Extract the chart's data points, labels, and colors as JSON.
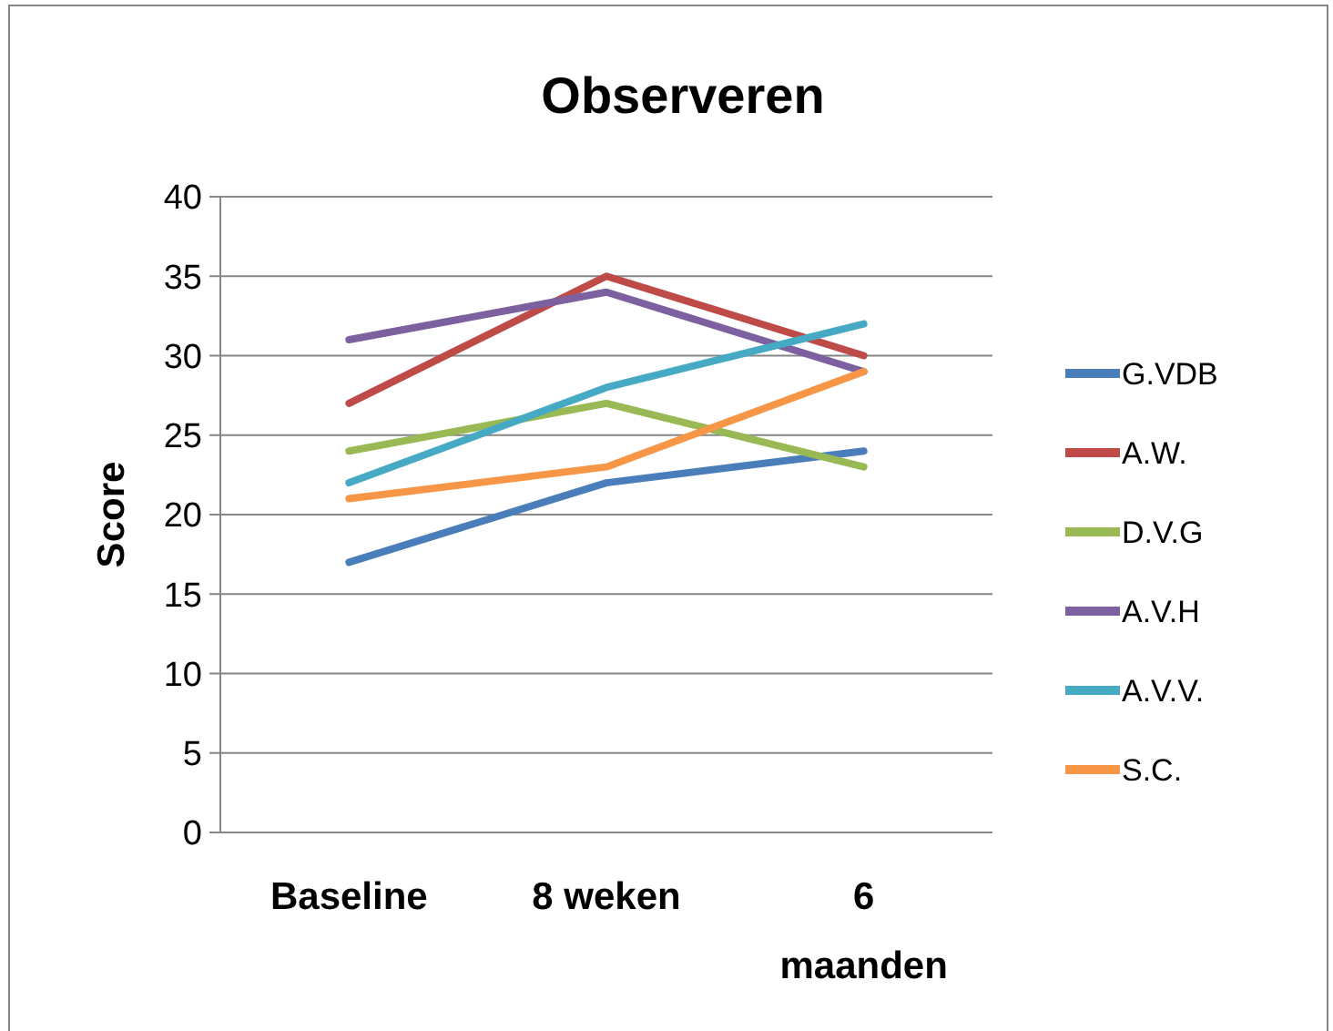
{
  "chart_data": {
    "type": "line",
    "title": "Observeren",
    "ylabel": "Score",
    "categories": [
      "Baseline",
      "8 weken",
      "6 maanden"
    ],
    "ylim": [
      0,
      40
    ],
    "yticks": [
      0,
      5,
      10,
      15,
      20,
      25,
      30,
      35,
      40
    ],
    "grid": "y",
    "legend": "right",
    "marker": "none",
    "line_style": "solid",
    "series": [
      {
        "name": "G.VDB",
        "color": "#4a7ebb",
        "values": [
          17,
          22,
          24
        ]
      },
      {
        "name": "A.W.",
        "color": "#be4b48",
        "values": [
          27,
          35,
          30
        ]
      },
      {
        "name": "D.V.G",
        "color": "#98b954",
        "values": [
          24,
          27,
          23
        ]
      },
      {
        "name": "A.V.H",
        "color": "#7d60a0",
        "values": [
          31,
          34,
          29
        ]
      },
      {
        "name": "A.V.V.",
        "color": "#46aac5",
        "values": [
          22,
          28,
          32
        ]
      },
      {
        "name": "S.C.",
        "color": "#f79646",
        "values": [
          21,
          23,
          29
        ]
      }
    ]
  }
}
